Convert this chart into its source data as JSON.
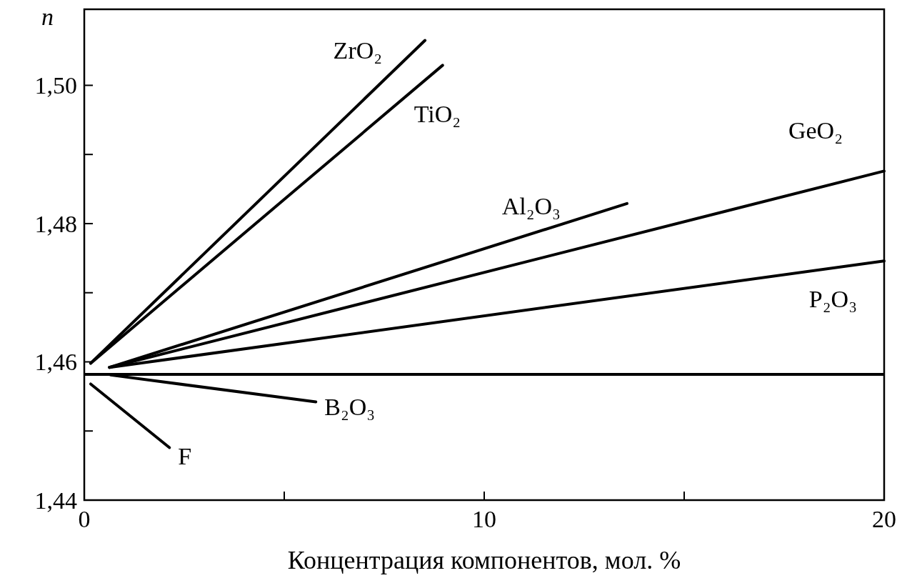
{
  "chart_data": {
    "type": "line",
    "xlabel": "Концентрация компонентов, мол. %",
    "ylabel": "n",
    "xlim": [
      0,
      20
    ],
    "ylim": [
      1.44,
      1.511
    ],
    "xticks": [
      0,
      {
        "value": 5,
        "label": null
      },
      10,
      {
        "value": 15,
        "label": null
      },
      20
    ],
    "yticks": [
      {
        "value": 1.44,
        "label": "1,44"
      },
      {
        "value": 1.45,
        "label": null
      },
      {
        "value": 1.46,
        "label": "1,46"
      },
      {
        "value": 1.47,
        "label": null
      },
      {
        "value": 1.48,
        "label": "1,48"
      },
      {
        "value": 1.49,
        "label": null
      },
      {
        "value": 1.5,
        "label": "1,50"
      }
    ],
    "grid": false,
    "legend": false,
    "marker": "none",
    "line_style": "solid",
    "ref_lines": [
      {
        "axis": "y",
        "value": 1.4582,
        "color": "#000000"
      }
    ],
    "series": [
      {
        "name": "ZrO₂",
        "color": "#000000",
        "x": [
          0.16,
          8.52
        ],
        "values": [
          1.4598,
          1.5065
        ]
      },
      {
        "name": "TiO₂",
        "color": "#000000",
        "x": [
          0.16,
          8.96
        ],
        "values": [
          1.4598,
          1.5029
        ]
      },
      {
        "name": "Al₂O₃",
        "color": "#000000",
        "x": [
          0.63,
          13.57
        ],
        "values": [
          1.4592,
          1.4829
        ]
      },
      {
        "name": "GeO₂",
        "color": "#000000",
        "x": [
          0.63,
          20
        ],
        "values": [
          1.4592,
          1.4876
        ]
      },
      {
        "name": "P₂O₃",
        "color": "#000000",
        "x": [
          0.63,
          20
        ],
        "values": [
          1.4592,
          1.4746
        ]
      },
      {
        "name": "B₂O₃",
        "color": "#000000",
        "x": [
          0.66,
          5.79
        ],
        "values": [
          1.4581,
          1.4542
        ]
      },
      {
        "name": "F",
        "color": "#000000",
        "x": [
          0.16,
          2.13
        ],
        "values": [
          1.4568,
          1.4476
        ]
      }
    ]
  }
}
